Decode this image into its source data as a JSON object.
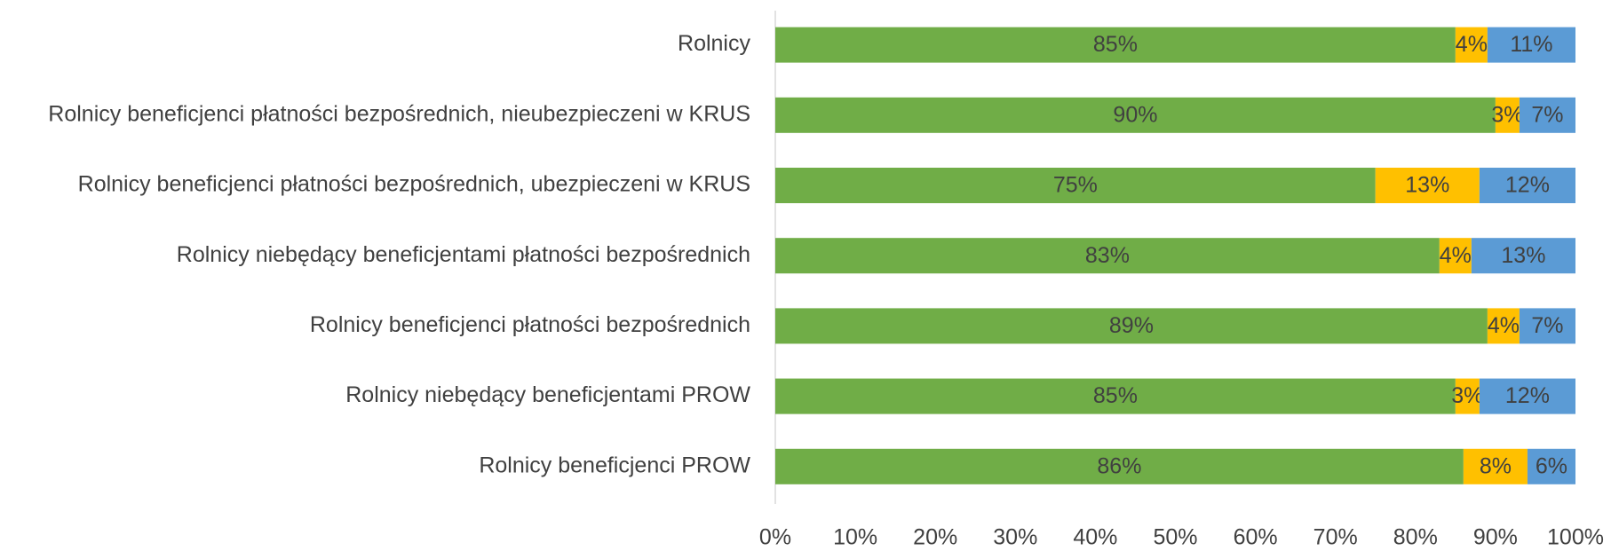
{
  "chart_data": {
    "type": "stacked_bar_horizontal",
    "categories": [
      "Rolnicy",
      "Rolnicy beneficjenci płatności bezpośrednich, nieubezpieczeni w KRUS",
      "Rolnicy beneficjenci płatności bezpośrednich, ubezpieczeni w KRUS",
      "Rolnicy niebędący beneficjentami płatności bezpośrednich",
      "Rolnicy beneficjenci płatności bezpośrednich",
      "Rolnicy niebędący beneficjentami PROW",
      "Rolnicy beneficjenci PROW"
    ],
    "series": [
      {
        "color": "#70ad47",
        "values": [
          85,
          90,
          75,
          83,
          89,
          85,
          86
        ],
        "value_labels": [
          "85%",
          "90%",
          "75%",
          "83%",
          "89%",
          "85%",
          "86%"
        ]
      },
      {
        "color": "#ffc000",
        "values": [
          4,
          3,
          13,
          4,
          4,
          3,
          8
        ],
        "value_labels": [
          "4%",
          "3%",
          "13%",
          "4%",
          "4%",
          "3%",
          "8%"
        ]
      },
      {
        "color": "#5b9bd5",
        "values": [
          11,
          7,
          12,
          13,
          7,
          12,
          6
        ],
        "value_labels": [
          "11%",
          "7%",
          "12%",
          "13%",
          "7%",
          "12%",
          "6%"
        ]
      }
    ],
    "xlim": [
      0,
      100
    ],
    "xticks": [
      {
        "value": 0,
        "label": "0%"
      },
      {
        "value": 10,
        "label": "10%"
      },
      {
        "value": 20,
        "label": "20%"
      },
      {
        "value": 30,
        "label": "30%"
      },
      {
        "value": 40,
        "label": "40%"
      },
      {
        "value": 50,
        "label": "50%"
      },
      {
        "value": 60,
        "label": "60%"
      },
      {
        "value": 70,
        "label": "70%"
      },
      {
        "value": 80,
        "label": "80%"
      },
      {
        "value": 90,
        "label": "90%"
      },
      {
        "value": 100,
        "label": "100%"
      }
    ],
    "grid": false
  }
}
